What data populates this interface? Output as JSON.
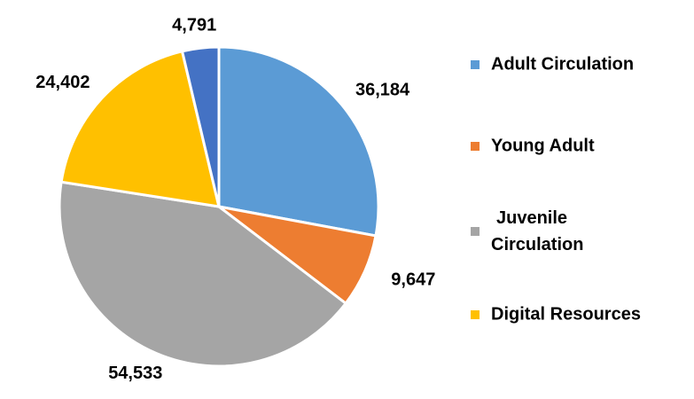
{
  "chart_data": {
    "type": "pie",
    "categories": [
      "Adult Circulation",
      "Young Adult",
      "Juvenile Circulation",
      "Digital Resources",
      null
    ],
    "values": [
      36184,
      9647,
      54533,
      24402,
      4791
    ],
    "value_labels": [
      "36,184",
      "9,647",
      "54,533",
      "24,402",
      "4,791"
    ],
    "colors": [
      "#5b9bd5",
      "#ed7d31",
      "#a5a5a5",
      "#ffc000",
      "#4472c4"
    ],
    "legend": "right"
  }
}
